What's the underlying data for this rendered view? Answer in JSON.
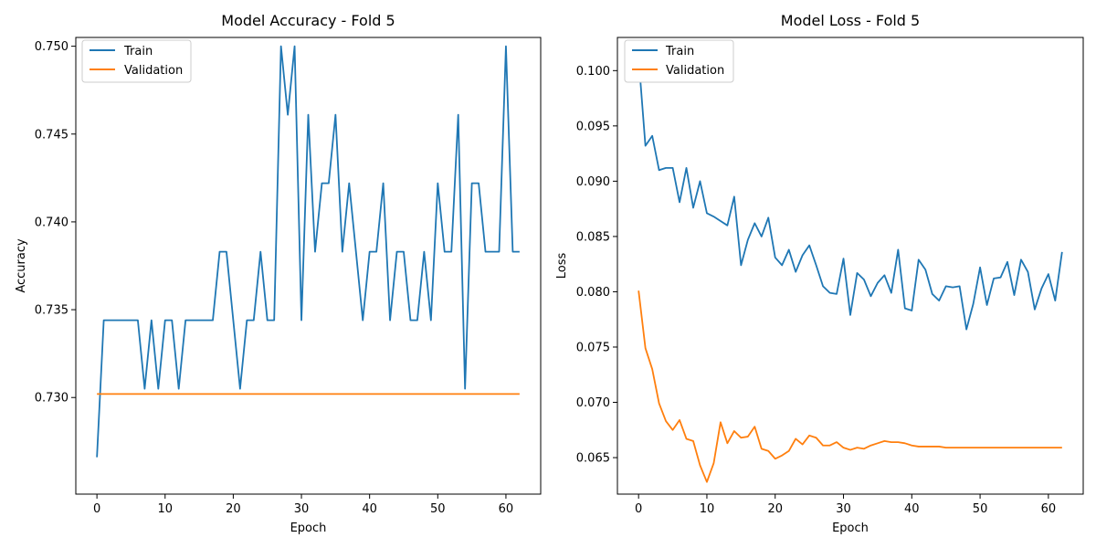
{
  "colors": {
    "train": "#1f77b4",
    "validation": "#ff7f0e"
  },
  "chart_data": [
    {
      "type": "line",
      "title": "Model Accuracy - Fold 5",
      "xlabel": "Epoch",
      "ylabel": "Accuracy",
      "xlim": [
        -3.1,
        65.1
      ],
      "ylim": [
        0.7245,
        0.7505
      ],
      "xticks": [
        0,
        10,
        20,
        30,
        40,
        50,
        60
      ],
      "xtick_labels": [
        "0",
        "10",
        "20",
        "30",
        "40",
        "50",
        "60"
      ],
      "yticks": [
        0.73,
        0.735,
        0.74,
        0.745,
        0.75
      ],
      "ytick_labels": [
        "0.730",
        "0.735",
        "0.740",
        "0.745",
        "0.750"
      ],
      "legend_position": "upper-left",
      "grid": false,
      "series": [
        {
          "name": "Train",
          "color_key": "train",
          "values": [
            0.7266,
            0.7344,
            0.7344,
            0.7344,
            0.7344,
            0.7344,
            0.7344,
            0.7305,
            0.7344,
            0.7305,
            0.7344,
            0.7344,
            0.7305,
            0.7344,
            0.7344,
            0.7344,
            0.7344,
            0.7344,
            0.7383,
            0.7383,
            0.7344,
            0.7305,
            0.7344,
            0.7344,
            0.7383,
            0.7344,
            0.7344,
            0.75,
            0.7461,
            0.75,
            0.7344,
            0.7461,
            0.7383,
            0.7422,
            0.7422,
            0.7461,
            0.7383,
            0.7422,
            0.7383,
            0.7344,
            0.7383,
            0.7383,
            0.7422,
            0.7344,
            0.7383,
            0.7383,
            0.7344,
            0.7344,
            0.7383,
            0.7344,
            0.7422,
            0.7383,
            0.7383,
            0.7461,
            0.7305,
            0.7422,
            0.7422,
            0.7383,
            0.7383,
            0.7383,
            0.75,
            0.7383,
            0.7383
          ]
        },
        {
          "name": "Validation",
          "color_key": "validation",
          "values": [
            0.7302,
            0.7302,
            0.7302,
            0.7302,
            0.7302,
            0.7302,
            0.7302,
            0.7302,
            0.7302,
            0.7302,
            0.7302,
            0.7302,
            0.7302,
            0.7302,
            0.7302,
            0.7302,
            0.7302,
            0.7302,
            0.7302,
            0.7302,
            0.7302,
            0.7302,
            0.7302,
            0.7302,
            0.7302,
            0.7302,
            0.7302,
            0.7302,
            0.7302,
            0.7302,
            0.7302,
            0.7302,
            0.7302,
            0.7302,
            0.7302,
            0.7302,
            0.7302,
            0.7302,
            0.7302,
            0.7302,
            0.7302,
            0.7302,
            0.7302,
            0.7302,
            0.7302,
            0.7302,
            0.7302,
            0.7302,
            0.7302,
            0.7302,
            0.7302,
            0.7302,
            0.7302,
            0.7302,
            0.7302,
            0.7302,
            0.7302,
            0.7302,
            0.7302,
            0.7302,
            0.7302,
            0.7302,
            0.7302
          ]
        }
      ]
    },
    {
      "type": "line",
      "title": "Model Loss - Fold 5",
      "xlabel": "Epoch",
      "ylabel": "Loss",
      "xlim": [
        -3.1,
        65.1
      ],
      "ylim": [
        0.0617,
        0.103
      ],
      "xticks": [
        0,
        10,
        20,
        30,
        40,
        50,
        60
      ],
      "xtick_labels": [
        "0",
        "10",
        "20",
        "30",
        "40",
        "50",
        "60"
      ],
      "yticks": [
        0.065,
        0.07,
        0.075,
        0.08,
        0.085,
        0.09,
        0.095,
        0.1
      ],
      "ytick_labels": [
        "0.065",
        "0.070",
        "0.075",
        "0.080",
        "0.085",
        "0.090",
        "0.095",
        "0.100"
      ],
      "legend_position": "upper-left",
      "grid": false,
      "series": [
        {
          "name": "Train",
          "color_key": "train",
          "values": [
            0.1012,
            0.0932,
            0.0941,
            0.091,
            0.0912,
            0.0912,
            0.0881,
            0.0912,
            0.0876,
            0.09,
            0.0871,
            0.0868,
            0.0864,
            0.086,
            0.0886,
            0.0824,
            0.0847,
            0.0862,
            0.085,
            0.0867,
            0.0831,
            0.0824,
            0.0838,
            0.0818,
            0.0833,
            0.0842,
            0.0824,
            0.0805,
            0.0799,
            0.0798,
            0.083,
            0.0779,
            0.0817,
            0.0811,
            0.0796,
            0.0808,
            0.0815,
            0.0799,
            0.0838,
            0.0785,
            0.0783,
            0.0829,
            0.082,
            0.0798,
            0.0792,
            0.0805,
            0.0804,
            0.0805,
            0.0766,
            0.0789,
            0.0822,
            0.0788,
            0.0812,
            0.0813,
            0.0827,
            0.0797,
            0.0829,
            0.0818,
            0.0784,
            0.0803,
            0.0816,
            0.0792,
            0.0836
          ]
        },
        {
          "name": "Validation",
          "color_key": "validation",
          "values": [
            0.0801,
            0.0749,
            0.073,
            0.0699,
            0.0683,
            0.0675,
            0.0684,
            0.0667,
            0.0665,
            0.0643,
            0.0628,
            0.0645,
            0.0682,
            0.0663,
            0.0674,
            0.0668,
            0.0669,
            0.0678,
            0.0658,
            0.0656,
            0.0649,
            0.0652,
            0.0656,
            0.0667,
            0.0662,
            0.067,
            0.0668,
            0.0661,
            0.0661,
            0.0664,
            0.0659,
            0.0657,
            0.0659,
            0.0658,
            0.0661,
            0.0663,
            0.0665,
            0.0664,
            0.0664,
            0.0663,
            0.0661,
            0.066,
            0.066,
            0.066,
            0.066,
            0.0659,
            0.0659,
            0.0659,
            0.0659,
            0.0659,
            0.0659,
            0.0659,
            0.0659,
            0.0659,
            0.0659,
            0.0659,
            0.0659,
            0.0659,
            0.0659,
            0.0659,
            0.0659,
            0.0659,
            0.0659
          ]
        }
      ]
    }
  ]
}
